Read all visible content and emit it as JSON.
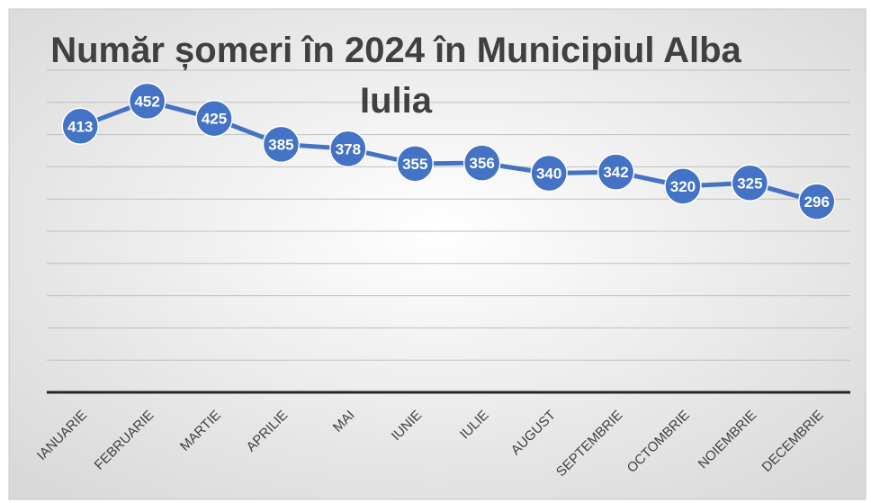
{
  "chart_data": {
    "type": "line",
    "title": "Număr șomeri în 2024 în Municipiul Alba Iulia",
    "categories": [
      "IANUARIE",
      "FEBRUARIE",
      "MARTIE",
      "APRILIE",
      "MAI",
      "IUNIE",
      "IULIE",
      "AUGUST",
      "SEPTEMBRIE",
      "OCTOMBRIE",
      "NOIEMBRIE",
      "DECEMBRIE"
    ],
    "series": [
      {
        "name": "Număr șomeri",
        "color": "#4472c4",
        "values": [
          413,
          452,
          425,
          385,
          378,
          355,
          356,
          340,
          342,
          320,
          325,
          296
        ]
      }
    ],
    "ylim": [
      0,
      500
    ],
    "yticks": [
      0,
      50,
      100,
      150,
      200,
      250,
      300,
      350,
      400,
      450,
      500
    ],
    "grid": true
  }
}
